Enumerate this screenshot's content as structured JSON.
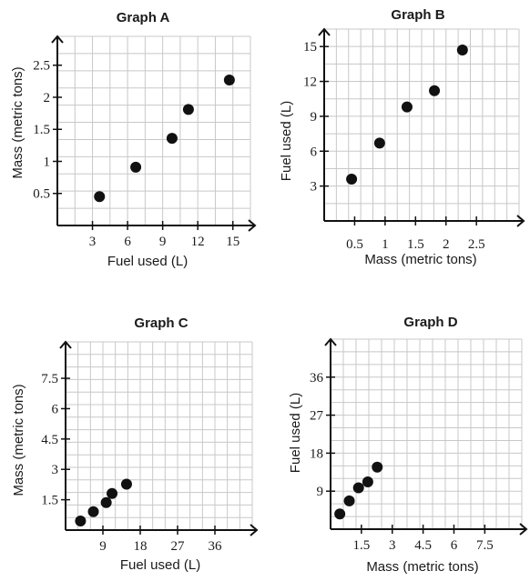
{
  "colors": {
    "point": "#111111",
    "axis": "#111111",
    "grid": "#c8c8c8"
  },
  "chart_data": [
    {
      "type": "scatter",
      "title": "Graph A",
      "xlabel": "Fuel used (L)",
      "ylabel": "Mass (metric tons)",
      "xlim": [
        0,
        16.5
      ],
      "ylim": [
        0,
        2.95
      ],
      "xticks": [
        3,
        6,
        9,
        12,
        15
      ],
      "xtick_labels": [
        "3",
        "6",
        "9",
        "12",
        "15"
      ],
      "yticks": [
        0.5,
        1,
        1.5,
        2,
        2.5
      ],
      "ytick_labels": [
        "0.5",
        "1",
        "1.5",
        "2",
        "2.5"
      ],
      "grid": true,
      "points": [
        {
          "x": 3.6,
          "y": 0.45
        },
        {
          "x": 6.7,
          "y": 0.91
        },
        {
          "x": 9.8,
          "y": 1.36
        },
        {
          "x": 11.2,
          "y": 1.81
        },
        {
          "x": 14.7,
          "y": 2.27
        }
      ]
    },
    {
      "type": "scatter",
      "title": "Graph B",
      "xlabel": "Mass (metric tons)",
      "ylabel": "Fuel used (L)",
      "xlim": [
        0,
        3.2
      ],
      "ylim": [
        0,
        16.5
      ],
      "xticks": [
        0.5,
        1,
        1.5,
        2,
        2.5
      ],
      "xtick_labels": [
        "0.5",
        "1",
        "1.5",
        "2",
        "2.5"
      ],
      "yticks": [
        3,
        6,
        9,
        12,
        15
      ],
      "ytick_labels": [
        "3",
        "6",
        "9",
        "12",
        "15"
      ],
      "grid": true,
      "points": [
        {
          "x": 0.45,
          "y": 3.6
        },
        {
          "x": 0.91,
          "y": 6.7
        },
        {
          "x": 1.36,
          "y": 9.8
        },
        {
          "x": 1.81,
          "y": 11.2
        },
        {
          "x": 2.27,
          "y": 14.7
        }
      ]
    },
    {
      "type": "scatter",
      "title": "Graph C",
      "xlabel": "Fuel used (L)",
      "ylabel": "Mass (metric tons)",
      "xlim": [
        0,
        45
      ],
      "ylim": [
        0,
        9.3
      ],
      "xticks": [
        9,
        18,
        27,
        36
      ],
      "xtick_labels": [
        "9",
        "18",
        "27",
        "36"
      ],
      "yticks": [
        1.5,
        3,
        4.5,
        6,
        7.5
      ],
      "ytick_labels": [
        "1.5",
        "3",
        "4.5",
        "6",
        "7.5"
      ],
      "grid": true,
      "points": [
        {
          "x": 3.6,
          "y": 0.45
        },
        {
          "x": 6.7,
          "y": 0.91
        },
        {
          "x": 9.8,
          "y": 1.36
        },
        {
          "x": 11.2,
          "y": 1.81
        },
        {
          "x": 14.7,
          "y": 2.27
        }
      ]
    },
    {
      "type": "scatter",
      "title": "Graph D",
      "xlabel": "Mass (metric tons)",
      "ylabel": "Fuel used (L)",
      "xlim": [
        0,
        9.3
      ],
      "ylim": [
        0,
        45
      ],
      "xticks": [
        1.5,
        3,
        4.5,
        6,
        7.5
      ],
      "xtick_labels": [
        "1.5",
        "3",
        "4.5",
        "6",
        "7.5"
      ],
      "yticks": [
        9,
        18,
        27,
        36
      ],
      "ytick_labels": [
        "9",
        "18",
        "27",
        "36"
      ],
      "grid": true,
      "points": [
        {
          "x": 0.45,
          "y": 3.6
        },
        {
          "x": 0.91,
          "y": 6.7
        },
        {
          "x": 1.36,
          "y": 9.8
        },
        {
          "x": 1.81,
          "y": 11.2
        },
        {
          "x": 2.27,
          "y": 14.7
        }
      ]
    }
  ]
}
